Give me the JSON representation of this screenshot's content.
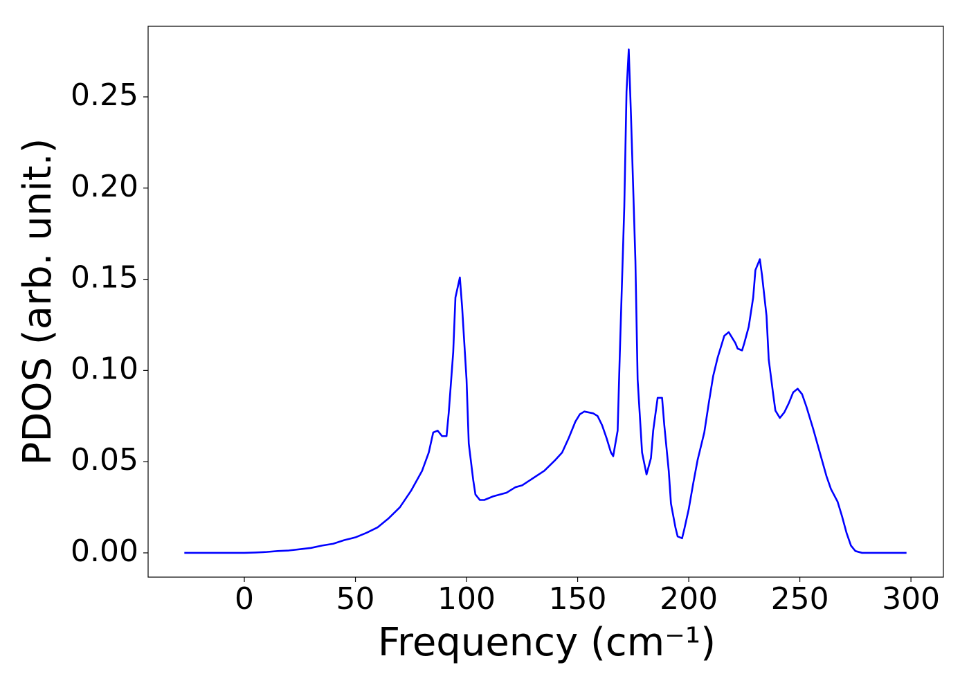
{
  "chart_data": {
    "type": "line",
    "xlabel": "Frequency (cm⁻¹)",
    "ylabel": "PDOS (arb. unit.)",
    "x": [
      -27,
      0,
      5,
      10,
      15,
      20,
      25,
      30,
      35,
      40,
      45,
      50,
      55,
      60,
      65,
      70,
      75,
      80,
      83,
      85,
      87,
      89,
      91,
      92,
      94,
      95,
      97,
      98,
      100,
      101,
      103,
      104,
      106,
      108,
      112,
      115,
      118,
      122,
      125,
      130,
      135,
      140,
      143,
      146,
      149,
      151,
      153,
      157,
      159,
      161,
      163,
      165,
      166,
      168,
      169,
      171,
      172,
      173,
      174,
      176,
      177,
      179,
      181,
      183,
      184,
      186,
      188,
      189,
      191,
      192,
      194,
      195,
      197,
      198,
      200,
      202,
      204,
      207,
      209,
      211,
      213,
      215,
      216,
      218,
      219,
      221,
      222,
      224,
      225,
      227,
      229,
      230,
      232,
      233,
      235,
      236,
      238,
      239,
      241,
      243,
      245,
      247,
      249,
      251,
      253,
      256,
      259,
      262,
      264,
      267,
      269,
      271,
      273,
      275,
      278,
      298
    ],
    "series": [
      {
        "color": "#0000ff",
        "values": [
          0,
          0,
          0.0002,
          0.0005,
          0.001,
          0.0013,
          0.002,
          0.0027,
          0.004,
          0.005,
          0.007,
          0.0085,
          0.011,
          0.014,
          0.019,
          0.025,
          0.034,
          0.045,
          0.055,
          0.066,
          0.067,
          0.064,
          0.064,
          0.077,
          0.11,
          0.14,
          0.151,
          0.135,
          0.095,
          0.06,
          0.04,
          0.032,
          0.029,
          0.029,
          0.031,
          0.032,
          0.033,
          0.036,
          0.037,
          0.041,
          0.045,
          0.051,
          0.055,
          0.063,
          0.072,
          0.076,
          0.0775,
          0.0765,
          0.075,
          0.07,
          0.063,
          0.055,
          0.053,
          0.067,
          0.11,
          0.19,
          0.253,
          0.276,
          0.24,
          0.16,
          0.095,
          0.055,
          0.043,
          0.052,
          0.067,
          0.085,
          0.085,
          0.07,
          0.045,
          0.027,
          0.014,
          0.009,
          0.008,
          0.013,
          0.024,
          0.038,
          0.051,
          0.066,
          0.082,
          0.097,
          0.107,
          0.115,
          0.119,
          0.121,
          0.119,
          0.115,
          0.112,
          0.111,
          0.115,
          0.124,
          0.14,
          0.155,
          0.161,
          0.152,
          0.13,
          0.106,
          0.087,
          0.078,
          0.074,
          0.077,
          0.082,
          0.088,
          0.09,
          0.087,
          0.08,
          0.068,
          0.055,
          0.042,
          0.035,
          0.028,
          0.02,
          0.011,
          0.004,
          0.001,
          0,
          0
        ]
      }
    ],
    "xlim": [
      -43.3,
      314.6
    ],
    "ylim": [
      -0.0133,
      0.2887
    ],
    "xticks": [
      0,
      50,
      100,
      150,
      200,
      250,
      300
    ],
    "yticks": [
      {
        "value": 0,
        "label": "0.00"
      },
      {
        "value": 0.05,
        "label": "0.05"
      },
      {
        "value": 0.1,
        "label": "0.10"
      },
      {
        "value": 0.15,
        "label": "0.15"
      },
      {
        "value": 0.2,
        "label": "0.20"
      },
      {
        "value": 0.25,
        "label": "0.25"
      }
    ]
  }
}
